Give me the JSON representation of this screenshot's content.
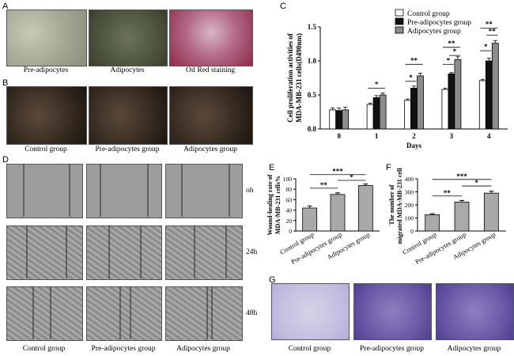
{
  "panels": {
    "A": "A",
    "B": "B",
    "C": "C",
    "D": "D",
    "E": "E",
    "F": "F",
    "G": "G"
  },
  "panel_a": {
    "captions": [
      "Pre-adipocytes",
      "Adipocytes",
      "Oil Red staining"
    ]
  },
  "panel_b": {
    "captions": [
      "Control group",
      "Pre-adipocytes group",
      "Adipocytes group"
    ]
  },
  "panel_d": {
    "captions": [
      "Control group",
      "Pre-adipocytes group",
      "Adipocytes group"
    ],
    "times": [
      "oh",
      "24h",
      "48h"
    ]
  },
  "panel_g": {
    "captions": [
      "Control group",
      "Pre-adipocytes group",
      "Adipocytes group"
    ]
  },
  "chart_data": [
    {
      "id": "C",
      "type": "bar",
      "ylabel": "Cell proliferation activities of MDA-MB-231 cells(D490nm)",
      "xlabel": "Days",
      "categories": [
        "0",
        "1",
        "2",
        "3",
        "4"
      ],
      "ylim": [
        0,
        1.5
      ],
      "yticks": [
        "0.0",
        "0.5",
        "1.0",
        "1.5"
      ],
      "legend_position": "top-right",
      "series": [
        {
          "name": "Control group",
          "color": "#ffffff",
          "values": [
            0.28,
            0.36,
            0.42,
            0.58,
            0.71
          ],
          "errors": [
            0.03,
            0.02,
            0.02,
            0.02,
            0.02
          ]
        },
        {
          "name": "Pre-adipocytes group",
          "color": "#111111",
          "values": [
            0.27,
            0.46,
            0.6,
            0.81,
            1.0
          ],
          "errors": [
            0.04,
            0.03,
            0.03,
            0.02,
            0.04
          ]
        },
        {
          "name": "Adipocytes group",
          "color": "#8c8c8c",
          "values": [
            0.28,
            0.5,
            0.78,
            1.02,
            1.26
          ],
          "errors": [
            0.04,
            0.03,
            0.04,
            0.04,
            0.04
          ]
        }
      ],
      "significance": [
        "*",
        "*",
        "**",
        "*",
        "**",
        "*",
        "**",
        "*",
        "**"
      ]
    },
    {
      "id": "E",
      "type": "bar",
      "ylabel": "Wound-healing rate of MDA-MB-231 cells%",
      "categories": [
        "Control group",
        "Pre-adipocytes group",
        "Adipocytes group"
      ],
      "ylim": [
        0,
        100
      ],
      "yticks": [
        "0",
        "20",
        "40",
        "60",
        "80",
        "100"
      ],
      "colors": [
        "#a9a9a9",
        "#a9a9a9",
        "#a9a9a9"
      ],
      "values": [
        44,
        70,
        87
      ],
      "errors": [
        4,
        3,
        3
      ],
      "significance": [
        "***",
        "**",
        "*"
      ]
    },
    {
      "id": "F",
      "type": "bar",
      "ylabel": "The number of migrated MDA-MB-231 cells",
      "categories": [
        "Control group",
        "Pre-adipocytes group",
        "Adipocytes group"
      ],
      "ylim": [
        0,
        400
      ],
      "yticks": [
        "0",
        "100",
        "200",
        "300",
        "400"
      ],
      "colors": [
        "#a9a9a9",
        "#a9a9a9",
        "#a9a9a9"
      ],
      "values": [
        125,
        222,
        290
      ],
      "errors": [
        8,
        12,
        15
      ],
      "significance": [
        "***",
        "**",
        "*"
      ]
    }
  ]
}
